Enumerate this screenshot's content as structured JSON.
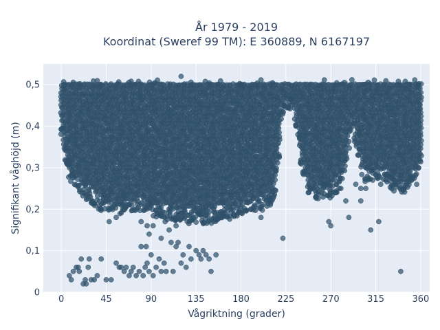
{
  "chart_data": {
    "type": "scatter",
    "title_line1": "År 1979 - 2019",
    "title_line2": "Koordinat (Sweref 99 TM): E 360889, N 6167197",
    "xlabel": "Vågriktning (grader)",
    "ylabel": "Signifikant våghöjd (m)",
    "xlim": [
      -18,
      369
    ],
    "ylim": [
      0,
      0.55
    ],
    "x_ticks": [
      {
        "value": 0,
        "label": "0"
      },
      {
        "value": 45,
        "label": "45"
      },
      {
        "value": 90,
        "label": "90"
      },
      {
        "value": 135,
        "label": "135"
      },
      {
        "value": 180,
        "label": "180"
      },
      {
        "value": 225,
        "label": "225"
      },
      {
        "value": 270,
        "label": "270"
      },
      {
        "value": 315,
        "label": "315"
      },
      {
        "value": 360,
        "label": "360"
      }
    ],
    "y_ticks": [
      {
        "value": 0,
        "label": "0"
      },
      {
        "value": 0.1,
        "label": "0,1"
      },
      {
        "value": 0.2,
        "label": "0,2"
      },
      {
        "value": 0.3,
        "label": "0,3"
      },
      {
        "value": 0.4,
        "label": "0,4"
      },
      {
        "value": 0.5,
        "label": "0,5"
      }
    ],
    "grid": true,
    "marker_color": "#2f5169",
    "band_lower_boundary": [
      [
        0,
        0.41
      ],
      [
        5,
        0.33
      ],
      [
        10,
        0.29
      ],
      [
        15,
        0.28
      ],
      [
        20,
        0.27
      ],
      [
        30,
        0.25
      ],
      [
        40,
        0.23
      ],
      [
        45,
        0.23
      ],
      [
        60,
        0.22
      ],
      [
        70,
        0.23
      ],
      [
        80,
        0.23
      ],
      [
        90,
        0.22
      ],
      [
        100,
        0.21
      ],
      [
        110,
        0.21
      ],
      [
        120,
        0.2
      ],
      [
        135,
        0.2
      ],
      [
        150,
        0.2
      ],
      [
        160,
        0.21
      ],
      [
        170,
        0.21
      ],
      [
        180,
        0.22
      ],
      [
        190,
        0.23
      ],
      [
        200,
        0.23
      ],
      [
        210,
        0.24
      ],
      [
        215,
        0.27
      ],
      [
        218,
        0.35
      ],
      [
        220,
        0.45
      ],
      [
        225,
        0.47
      ],
      [
        232,
        0.47
      ],
      [
        237,
        0.39
      ],
      [
        242,
        0.31
      ],
      [
        248,
        0.27
      ],
      [
        255,
        0.26
      ],
      [
        262,
        0.26
      ],
      [
        270,
        0.26
      ],
      [
        278,
        0.28
      ],
      [
        284,
        0.32
      ],
      [
        288,
        0.38
      ],
      [
        292,
        0.42
      ],
      [
        298,
        0.35
      ],
      [
        304,
        0.3
      ],
      [
        310,
        0.3
      ],
      [
        320,
        0.31
      ],
      [
        330,
        0.28
      ],
      [
        338,
        0.27
      ],
      [
        345,
        0.27
      ],
      [
        350,
        0.28
      ],
      [
        355,
        0.31
      ],
      [
        360,
        0.34
      ]
    ],
    "outliers": [
      [
        8,
        0.04
      ],
      [
        10,
        0.03
      ],
      [
        12,
        0.05
      ],
      [
        15,
        0.06
      ],
      [
        17,
        0.06
      ],
      [
        18,
        0.05
      ],
      [
        20,
        0.08
      ],
      [
        22,
        0.02
      ],
      [
        24,
        0.03
      ],
      [
        25,
        0.02
      ],
      [
        27,
        0.06
      ],
      [
        28,
        0.08
      ],
      [
        30,
        0.03
      ],
      [
        33,
        0.03
      ],
      [
        36,
        0.04
      ],
      [
        40,
        0.08
      ],
      [
        45,
        0.03
      ],
      [
        50,
        0.03
      ],
      [
        55,
        0.07
      ],
      [
        58,
        0.06
      ],
      [
        60,
        0.06
      ],
      [
        63,
        0.05
      ],
      [
        65,
        0.06
      ],
      [
        68,
        0.04
      ],
      [
        70,
        0.05
      ],
      [
        72,
        0.06
      ],
      [
        75,
        0.04
      ],
      [
        78,
        0.05
      ],
      [
        80,
        0.11
      ],
      [
        82,
        0.04
      ],
      [
        84,
        0.06
      ],
      [
        85,
        0.11
      ],
      [
        86,
        0.07
      ],
      [
        88,
        0.05
      ],
      [
        90,
        0.09
      ],
      [
        92,
        0.04
      ],
      [
        95,
        0.06
      ],
      [
        98,
        0.08
      ],
      [
        100,
        0.05
      ],
      [
        103,
        0.07
      ],
      [
        105,
        0.05
      ],
      [
        110,
        0.12
      ],
      [
        112,
        0.05
      ],
      [
        115,
        0.11
      ],
      [
        117,
        0.12
      ],
      [
        120,
        0.07
      ],
      [
        122,
        0.09
      ],
      [
        125,
        0.06
      ],
      [
        128,
        0.11
      ],
      [
        130,
        0.08
      ],
      [
        135,
        0.1
      ],
      [
        138,
        0.09
      ],
      [
        140,
        0.08
      ],
      [
        142,
        0.1
      ],
      [
        145,
        0.09
      ],
      [
        148,
        0.08
      ],
      [
        150,
        0.05
      ],
      [
        155,
        0.09
      ],
      [
        160,
        0.18
      ],
      [
        80,
        0.17
      ],
      [
        86,
        0.16
      ],
      [
        88,
        0.14
      ],
      [
        92,
        0.16
      ],
      [
        96,
        0.19
      ],
      [
        100,
        0.13
      ],
      [
        104,
        0.17
      ],
      [
        108,
        0.15
      ],
      [
        112,
        0.18
      ],
      [
        115,
        0.16
      ],
      [
        55,
        0.18
      ],
      [
        60,
        0.21
      ],
      [
        40,
        0.2
      ],
      [
        48,
        0.17
      ],
      [
        222,
        0.13
      ],
      [
        200,
        0.18
      ],
      [
        210,
        0.22
      ],
      [
        190,
        0.2
      ],
      [
        268,
        0.17
      ],
      [
        270,
        0.16
      ],
      [
        285,
        0.22
      ],
      [
        288,
        0.18
      ],
      [
        300,
        0.22
      ],
      [
        310,
        0.15
      ],
      [
        318,
        0.17
      ],
      [
        340,
        0.05
      ],
      [
        320,
        0.26
      ],
      [
        325,
        0.27
      ],
      [
        248,
        0.24
      ],
      [
        255,
        0.23
      ],
      [
        262,
        0.26
      ],
      [
        275,
        0.24
      ],
      [
        280,
        0.25
      ],
      [
        295,
        0.26
      ],
      [
        305,
        0.25
      ],
      [
        312,
        0.27
      ],
      [
        228,
        0.45
      ],
      [
        235,
        0.4
      ],
      [
        120,
        0.52
      ],
      [
        300,
        0.25
      ],
      [
        352,
        0.28
      ],
      [
        358,
        0.3
      ],
      [
        356,
        0.26
      ]
    ]
  }
}
